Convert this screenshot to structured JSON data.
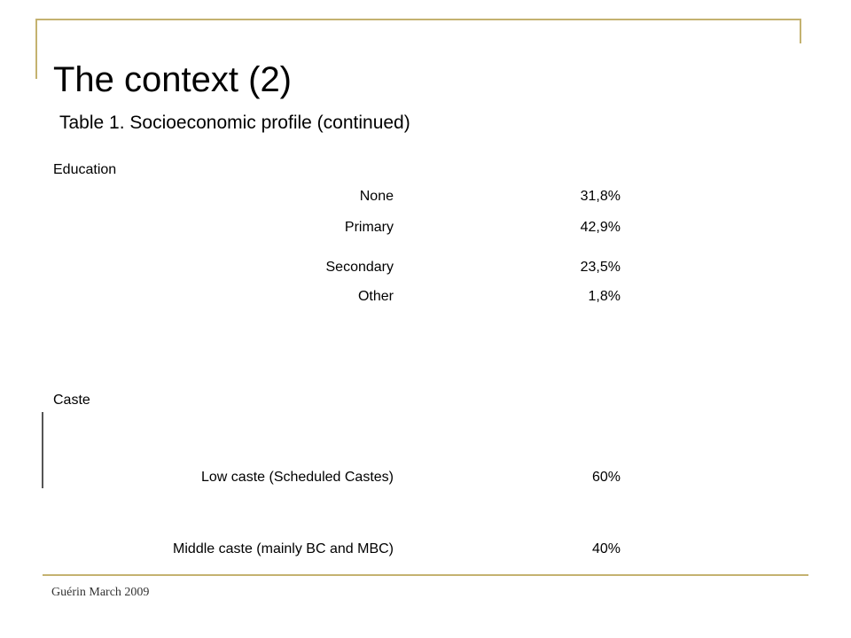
{
  "title": "The context (2)",
  "caption": "Table 1. Socioeconomic profile (continued)",
  "education": {
    "heading": "Education",
    "rows": [
      {
        "label": "None",
        "value": "31,8%"
      },
      {
        "label": "Primary",
        "value": "42,9%"
      },
      {
        "label": "Secondary",
        "value": "23,5%"
      },
      {
        "label": "Other",
        "value": "1,8%"
      }
    ]
  },
  "caste": {
    "heading": "Caste",
    "rows": [
      {
        "label": "Low caste (Scheduled Castes)",
        "value": "60%"
      },
      {
        "label": "Middle caste (mainly BC and MBC)",
        "value": "40%"
      }
    ]
  },
  "footer": "Guérin March 2009"
}
